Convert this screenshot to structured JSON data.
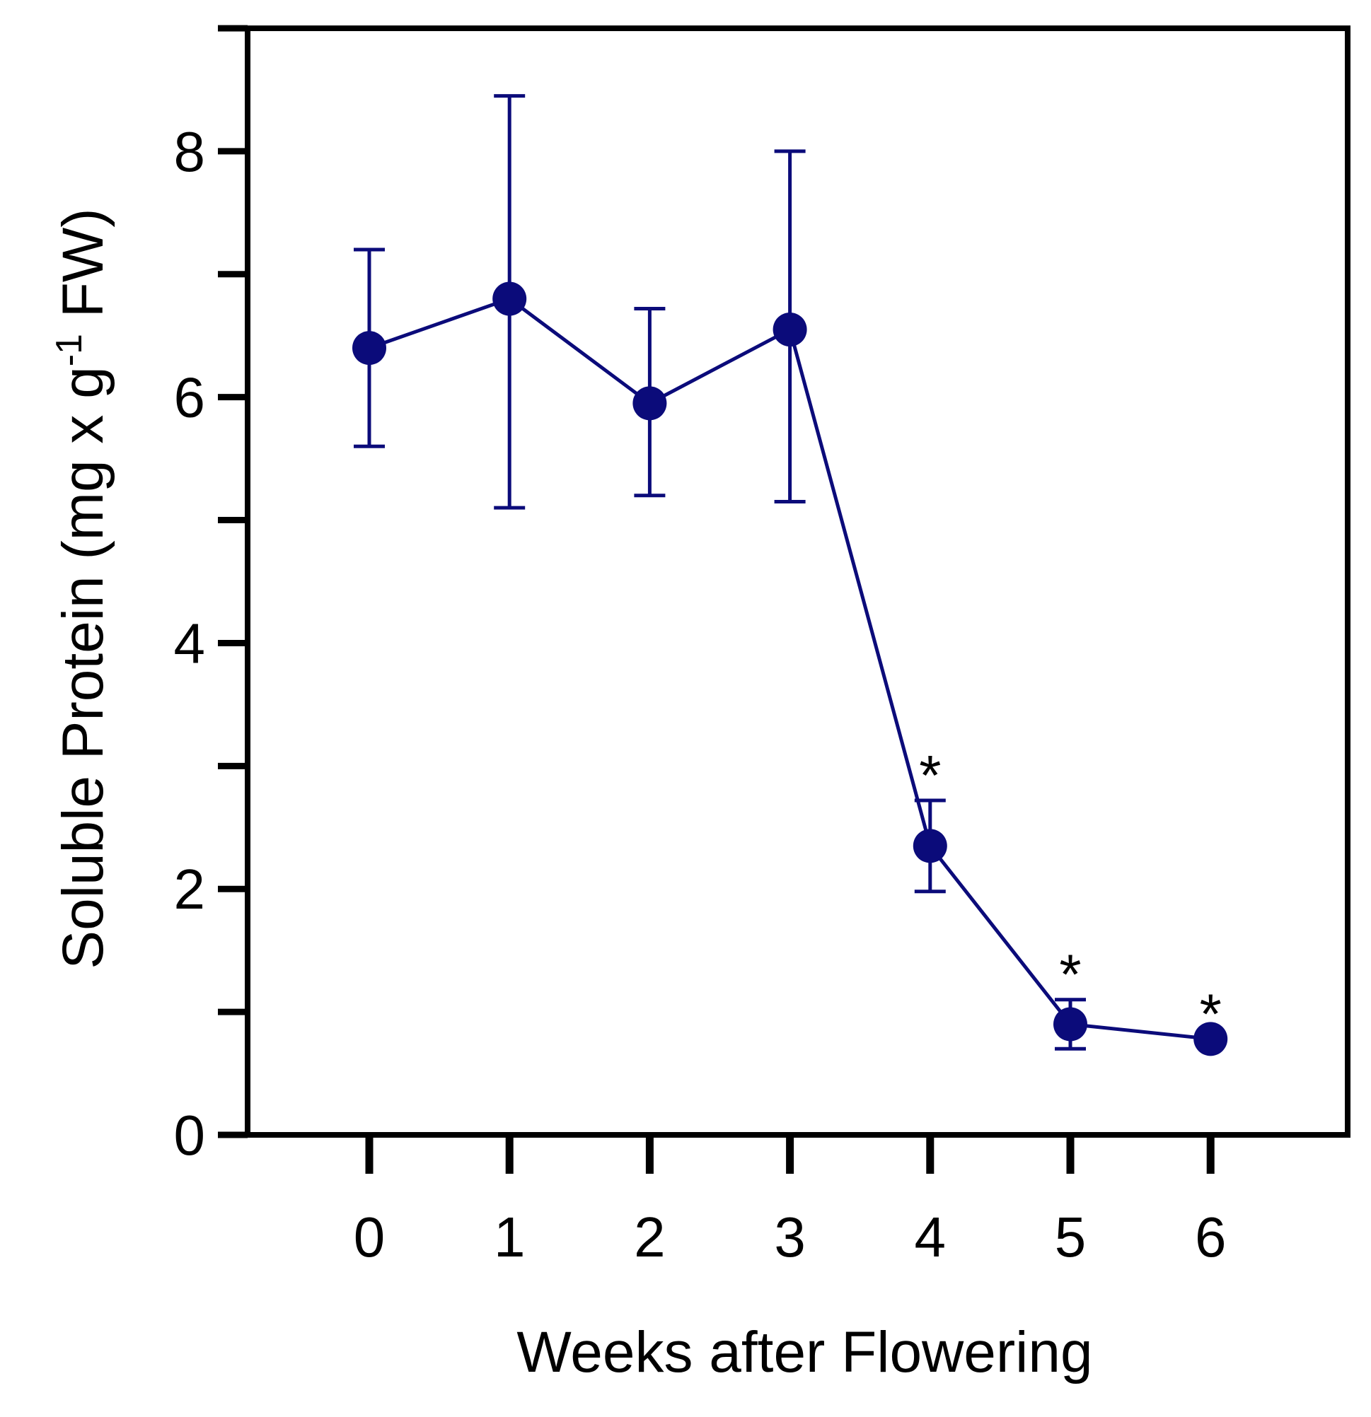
{
  "chart_data": {
    "type": "line",
    "title": "",
    "xlabel": "Weeks after Flowering",
    "ylabel_main": "Soluble Protein (mg x g",
    "ylabel_sup": "-1",
    "ylabel_end": " FW)",
    "ylabel": "Soluble Protein (mg x g-1 FW)",
    "xlim": [
      -1,
      7
    ],
    "ylim": [
      0,
      9
    ],
    "x_ticks": [
      0,
      1,
      2,
      3,
      4,
      5,
      6
    ],
    "x_tick_labels": [
      "0",
      "1",
      "2",
      "3",
      "4",
      "5",
      "6"
    ],
    "y_major_ticks": [
      0,
      2,
      4,
      6,
      8
    ],
    "y_minor_ticks": [
      1,
      3,
      5,
      7,
      9
    ],
    "y_tick_labels": [
      "0",
      "2",
      "4",
      "6",
      "8"
    ],
    "grid": false,
    "legend": "none",
    "colors": {
      "series": "#0b0b7a",
      "axis": "#000000"
    },
    "series": [
      {
        "name": "Soluble Protein",
        "x": [
          0,
          1,
          2,
          3,
          4,
          5,
          6
        ],
        "y": [
          6.4,
          6.8,
          5.95,
          6.55,
          2.35,
          0.9,
          0.78
        ],
        "err_low": [
          5.6,
          5.1,
          5.2,
          5.15,
          1.98,
          0.7,
          0.78
        ],
        "err_high": [
          7.2,
          8.45,
          6.72,
          8.0,
          2.72,
          1.1,
          0.78
        ]
      }
    ],
    "annotations": [
      {
        "x": 4,
        "y": 2.72,
        "text": "*"
      },
      {
        "x": 5,
        "y": 1.1,
        "text": "*"
      },
      {
        "x": 6,
        "y": 0.78,
        "text": "*"
      }
    ]
  }
}
